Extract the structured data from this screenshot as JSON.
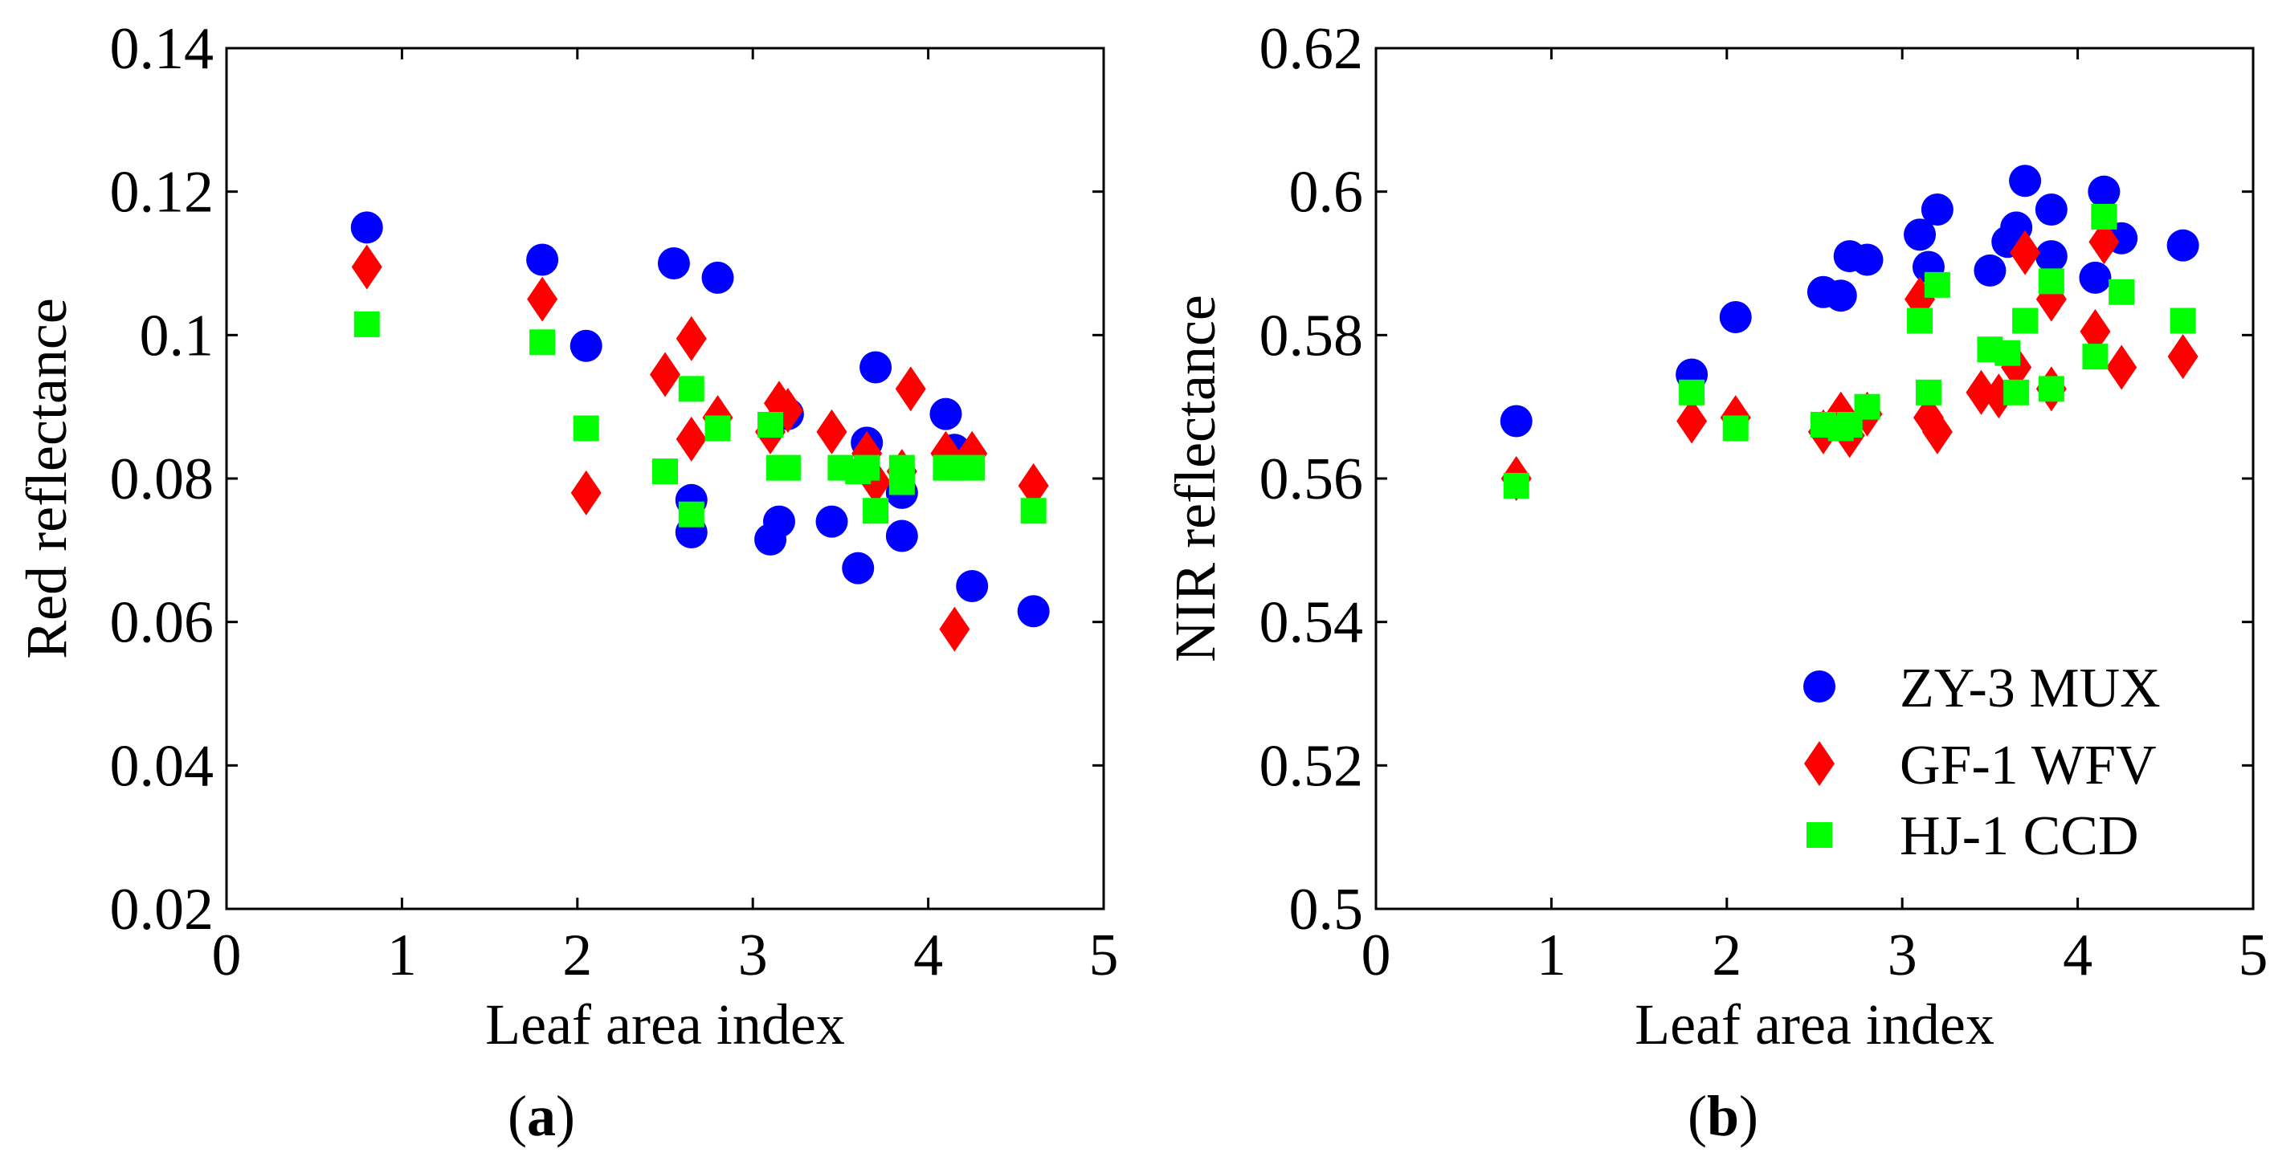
{
  "colors": {
    "zy3": "#0000ff",
    "gf1": "#ff0000",
    "hj1": "#00ff00",
    "axes": "#000000",
    "background": "#ffffff"
  },
  "chart_data": [
    {
      "type": "scatter",
      "panel": "(a)",
      "panel_paren_open": "(",
      "panel_letter": "a",
      "panel_paren_close": ")",
      "xlabel": "Leaf area index",
      "ylabel": "Red reflectance",
      "xlim": [
        0,
        5
      ],
      "ylim": [
        0.02,
        0.14
      ],
      "xticks": [
        "0",
        "1",
        "2",
        "3",
        "4",
        "5"
      ],
      "yticks": [
        "0.02",
        "0.04",
        "0.06",
        "0.08",
        "0.1",
        "0.12",
        "0.14"
      ],
      "grid": false,
      "series": [
        {
          "name": "ZY-3 MUX",
          "marker": "circle",
          "color_key": "zy3",
          "x": [
            0.8,
            1.8,
            2.05,
            2.55,
            2.65,
            2.65,
            2.8,
            3.1,
            3.15,
            3.2,
            3.45,
            3.6,
            3.65,
            3.7,
            3.85,
            3.85,
            4.1,
            4.15,
            4.25,
            4.6
          ],
          "y": [
            0.115,
            0.1105,
            0.0985,
            0.11,
            0.077,
            0.0725,
            0.108,
            0.0715,
            0.074,
            0.089,
            0.074,
            0.0675,
            0.085,
            0.0955,
            0.072,
            0.078,
            0.089,
            0.084,
            0.065,
            0.0615
          ]
        },
        {
          "name": "GF-1 WFV",
          "marker": "diamond",
          "color_key": "gf1",
          "x": [
            0.8,
            1.8,
            2.05,
            2.5,
            2.65,
            2.65,
            2.8,
            3.1,
            3.15,
            3.2,
            3.45,
            3.65,
            3.7,
            3.85,
            3.9,
            4.1,
            4.15,
            4.25,
            4.6
          ],
          "y": [
            0.1095,
            0.105,
            0.078,
            0.0945,
            0.0855,
            0.0995,
            0.0885,
            0.0865,
            0.0905,
            0.0895,
            0.0865,
            0.0835,
            0.0795,
            0.081,
            0.0925,
            0.0835,
            0.059,
            0.0835,
            0.079
          ]
        },
        {
          "name": "HJ-1 CCD",
          "marker": "square",
          "color_key": "hj1",
          "x": [
            0.8,
            1.8,
            2.05,
            2.5,
            2.65,
            2.65,
            2.8,
            3.1,
            3.15,
            3.2,
            3.5,
            3.6,
            3.65,
            3.7,
            3.85,
            3.85,
            4.1,
            4.15,
            4.25,
            4.6
          ],
          "y": [
            0.1015,
            0.099,
            0.087,
            0.081,
            0.0925,
            0.075,
            0.087,
            0.0875,
            0.0815,
            0.0815,
            0.0815,
            0.081,
            0.0815,
            0.0755,
            0.0815,
            0.0795,
            0.0815,
            0.0815,
            0.0815,
            0.0755
          ]
        }
      ]
    },
    {
      "type": "scatter",
      "panel": "(b)",
      "panel_paren_open": "(",
      "panel_letter": "b",
      "panel_paren_close": ")",
      "xlabel": "Leaf area index",
      "ylabel": "NIR reflectance",
      "xlim": [
        0,
        5
      ],
      "ylim": [
        0.5,
        0.62
      ],
      "xticks": [
        "0",
        "1",
        "2",
        "3",
        "4",
        "5"
      ],
      "yticks": [
        "0.5",
        "0.52",
        "0.54",
        "0.56",
        "0.58",
        "0.6",
        "0.62"
      ],
      "grid": false,
      "legend_position": "bottom-right",
      "legend": [
        "ZY-3 MUX",
        "GF-1 WFV",
        "HJ-1 CCD"
      ],
      "series": [
        {
          "name": "ZY-3 MUX",
          "marker": "circle",
          "color_key": "zy3",
          "x": [
            0.8,
            1.8,
            2.05,
            2.55,
            2.65,
            2.7,
            2.8,
            3.1,
            3.15,
            3.2,
            3.5,
            3.6,
            3.65,
            3.7,
            3.85,
            3.85,
            4.1,
            4.15,
            4.25,
            4.6
          ],
          "y": [
            0.568,
            0.5745,
            0.5825,
            0.586,
            0.5855,
            0.591,
            0.5905,
            0.594,
            0.5895,
            0.5975,
            0.589,
            0.593,
            0.595,
            0.6015,
            0.5975,
            0.591,
            0.588,
            0.6,
            0.5935,
            0.5925
          ]
        },
        {
          "name": "GF-1 WFV",
          "marker": "diamond",
          "color_key": "gf1",
          "x": [
            0.8,
            1.8,
            2.05,
            2.55,
            2.65,
            2.7,
            2.8,
            3.1,
            3.15,
            3.2,
            3.45,
            3.55,
            3.65,
            3.7,
            3.85,
            3.85,
            4.1,
            4.15,
            4.25,
            4.6
          ],
          "y": [
            0.56,
            0.568,
            0.5685,
            0.5665,
            0.569,
            0.566,
            0.569,
            0.585,
            0.5685,
            0.5665,
            0.572,
            0.5715,
            0.5755,
            0.5915,
            0.585,
            0.5725,
            0.5805,
            0.593,
            0.5755,
            0.577
          ]
        },
        {
          "name": "HJ-1 CCD",
          "marker": "square",
          "color_key": "hj1",
          "x": [
            0.8,
            1.8,
            2.05,
            2.55,
            2.65,
            2.7,
            2.8,
            3.1,
            3.15,
            3.2,
            3.5,
            3.6,
            3.65,
            3.7,
            3.85,
            3.85,
            4.1,
            4.15,
            4.25,
            4.6
          ],
          "y": [
            0.559,
            0.572,
            0.567,
            0.5675,
            0.567,
            0.5675,
            0.57,
            0.582,
            0.572,
            0.587,
            0.578,
            0.5775,
            0.572,
            0.582,
            0.5875,
            0.5725,
            0.577,
            0.5965,
            0.586,
            0.582
          ]
        }
      ]
    }
  ]
}
